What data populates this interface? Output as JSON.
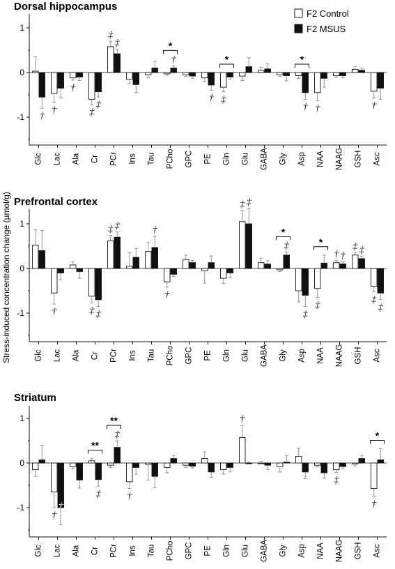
{
  "chart_data": {
    "type": "bar",
    "ylabel": "Stress-induced concentration change (µmol/g)",
    "categories": [
      "Glc",
      "Lac",
      "Ala",
      "Cr",
      "PCr",
      "Ins",
      "Tau",
      "PCho",
      "GPC",
      "PE",
      "Gln",
      "Glu",
      "GABA",
      "Gly",
      "Asp",
      "NAA",
      "NAAG",
      "GSH",
      "Asc"
    ],
    "legend": {
      "placement": "top-right",
      "entries": [
        "F2 Control",
        "F2 MSUS"
      ],
      "colors": [
        "#ffffff",
        "#111111"
      ]
    },
    "yticks": [
      1,
      0,
      -1
    ],
    "ylim": [
      -1.5,
      1.5
    ],
    "panels": [
      {
        "title": "Dorsal hippocampus",
        "series": [
          {
            "name": "F2 Control",
            "values": [
              0.03,
              -0.47,
              -0.12,
              -0.6,
              0.58,
              -0.15,
              -0.05,
              -0.03,
              -0.05,
              -0.12,
              -0.33,
              -0.08,
              0.05,
              -0.05,
              -0.07,
              -0.45,
              -0.07,
              0.07,
              -0.42
            ],
            "errors": [
              0.32,
              0.2,
              0.05,
              0.12,
              0.12,
              0.1,
              0.07,
              0.03,
              0.04,
              0.08,
              0.1,
              0.1,
              0.07,
              0.04,
              0.06,
              0.18,
              0.04,
              0.07,
              0.15
            ]
          },
          {
            "name": "F2 MSUS",
            "values": [
              -0.55,
              -0.35,
              -0.1,
              -0.43,
              0.42,
              -0.27,
              0.1,
              0.1,
              -0.08,
              -0.28,
              -0.1,
              0.13,
              0.08,
              -0.07,
              -0.45,
              -0.13,
              -0.07,
              0.05,
              -0.35
            ],
            "errors": [
              0.25,
              0.22,
              0.08,
              0.12,
              0.1,
              0.18,
              0.15,
              0.05,
              0.05,
              0.12,
              0.05,
              0.2,
              0.12,
              0.12,
              0.15,
              0.2,
              0.05,
              0.05,
              0.25
            ]
          }
        ],
        "annotations": [
          {
            "category": "Glc",
            "series": "F2 MSUS",
            "symbol": "†",
            "pos": "below"
          },
          {
            "category": "Lac",
            "series": "F2 Control",
            "symbol": "†",
            "pos": "below"
          },
          {
            "category": "Ala",
            "series": "F2 Control",
            "symbol": "†",
            "pos": "below"
          },
          {
            "category": "Cr",
            "series": "F2 Control",
            "symbol": "‡",
            "pos": "below"
          },
          {
            "category": "Cr",
            "series": "F2 MSUS",
            "symbol": "‡",
            "pos": "below"
          },
          {
            "category": "PCr",
            "series": "F2 Control",
            "symbol": "‡",
            "pos": "above"
          },
          {
            "category": "PCr",
            "series": "F2 MSUS",
            "symbol": "‡",
            "pos": "above"
          },
          {
            "category": "PCho",
            "series": "F2 MSUS",
            "symbol": "†",
            "pos": "above"
          },
          {
            "category": "PE",
            "series": "F2 MSUS",
            "symbol": "†",
            "pos": "below"
          },
          {
            "category": "Gln",
            "series": "F2 Control",
            "symbol": "‡",
            "pos": "below"
          },
          {
            "category": "Asp",
            "series": "F2 MSUS",
            "symbol": "†",
            "pos": "below"
          },
          {
            "category": "NAA",
            "series": "F2 Control",
            "symbol": "†",
            "pos": "below"
          },
          {
            "category": "Asc",
            "series": "F2 Control",
            "symbol": "†",
            "pos": "below"
          }
        ],
        "significance": [
          {
            "category": "PCho",
            "label": "*"
          },
          {
            "category": "Gln",
            "label": "*"
          },
          {
            "category": "Asp",
            "label": "*"
          }
        ]
      },
      {
        "title": "Prefrontal cortex",
        "series": [
          {
            "name": "F2 Control",
            "values": [
              0.52,
              -0.55,
              0.08,
              -0.62,
              0.62,
              0.05,
              0.38,
              -0.3,
              0.2,
              -0.05,
              -0.22,
              1.05,
              0.13,
              -0.03,
              -0.5,
              -0.45,
              0.13,
              0.3,
              -0.4
            ],
            "errors": [
              0.35,
              0.25,
              0.07,
              0.15,
              0.12,
              0.3,
              0.2,
              0.12,
              0.1,
              0.28,
              0.12,
              0.25,
              0.1,
              0.04,
              0.25,
              0.2,
              0.05,
              0.05,
              0.12
            ]
          },
          {
            "name": "F2 MSUS",
            "values": [
              0.4,
              -0.1,
              -0.07,
              -0.7,
              0.7,
              0.25,
              0.47,
              -0.13,
              0.13,
              0.13,
              -0.1,
              1.0,
              0.1,
              0.3,
              -0.6,
              0.12,
              0.1,
              0.22,
              -0.55
            ],
            "errors": [
              0.45,
              0.15,
              0.15,
              0.15,
              0.12,
              0.2,
              0.25,
              0.05,
              0.05,
              0.15,
              0.1,
              0.35,
              0.07,
              0.07,
              0.25,
              0.18,
              0.05,
              0.05,
              0.15
            ]
          }
        ],
        "annotations": [
          {
            "category": "Lac",
            "series": "F2 Control",
            "symbol": "†",
            "pos": "below"
          },
          {
            "category": "Cr",
            "series": "F2 Control",
            "symbol": "‡",
            "pos": "below"
          },
          {
            "category": "Cr",
            "series": "F2 MSUS",
            "symbol": "‡",
            "pos": "below"
          },
          {
            "category": "PCr",
            "series": "F2 Control",
            "symbol": "‡",
            "pos": "above"
          },
          {
            "category": "PCr",
            "series": "F2 MSUS",
            "symbol": "‡",
            "pos": "above"
          },
          {
            "category": "Tau",
            "series": "F2 MSUS",
            "symbol": "†",
            "pos": "above"
          },
          {
            "category": "PCho",
            "series": "F2 Control",
            "symbol": "†",
            "pos": "below"
          },
          {
            "category": "Glu",
            "series": "F2 Control",
            "symbol": "‡",
            "pos": "above"
          },
          {
            "category": "Glu",
            "series": "F2 MSUS",
            "symbol": "‡",
            "pos": "above"
          },
          {
            "category": "Gly",
            "series": "F2 MSUS",
            "symbol": "‡",
            "pos": "above"
          },
          {
            "category": "Asp",
            "series": "F2 MSUS",
            "symbol": "‡",
            "pos": "below"
          },
          {
            "category": "NAA",
            "series": "F2 Control",
            "symbol": "‡",
            "pos": "below"
          },
          {
            "category": "NAAG",
            "series": "F2 Control",
            "symbol": "†",
            "pos": "above"
          },
          {
            "category": "NAAG",
            "series": "F2 MSUS",
            "symbol": "†",
            "pos": "above"
          },
          {
            "category": "GSH",
            "series": "F2 Control",
            "symbol": "‡",
            "pos": "above"
          },
          {
            "category": "GSH",
            "series": "F2 MSUS",
            "symbol": "‡",
            "pos": "above"
          },
          {
            "category": "Asc",
            "series": "F2 Control",
            "symbol": "‡",
            "pos": "below"
          },
          {
            "category": "Asc",
            "series": "F2 MSUS",
            "symbol": "‡",
            "pos": "below"
          }
        ],
        "significance": [
          {
            "category": "Gly",
            "label": "*"
          },
          {
            "category": "NAA",
            "label": "*"
          }
        ]
      },
      {
        "title": "Striatum",
        "series": [
          {
            "name": "F2 Control",
            "values": [
              -0.15,
              -0.65,
              -0.08,
              0.05,
              -0.05,
              -0.42,
              -0.03,
              -0.1,
              -0.05,
              0.1,
              -0.15,
              0.57,
              0.0,
              -0.08,
              0.15,
              -0.05,
              -0.15,
              -0.02,
              -0.57
            ],
            "errors": [
              0.15,
              0.35,
              0.05,
              0.05,
              0.05,
              0.15,
              0.35,
              0.12,
              0.05,
              0.15,
              0.1,
              0.27,
              0.04,
              0.12,
              0.18,
              0.04,
              0.06,
              0.04,
              0.18
            ]
          },
          {
            "name": "F2 MSUS",
            "values": [
              0.07,
              -1.0,
              -0.38,
              -0.37,
              0.35,
              -0.1,
              -0.3,
              0.1,
              -0.07,
              -0.2,
              -0.1,
              0.0,
              -0.05,
              0.02,
              -0.2,
              -0.22,
              -0.08,
              0.1,
              0.07
            ],
            "errors": [
              0.33,
              0.38,
              0.18,
              0.15,
              0.15,
              0.15,
              0.25,
              0.07,
              0.04,
              0.12,
              0.1,
              0.02,
              0.1,
              0.15,
              0.15,
              0.12,
              0.05,
              0.07,
              0.25
            ]
          }
        ],
        "annotations": [
          {
            "category": "Lac",
            "series": "F2 Control",
            "symbol": "†",
            "pos": "below"
          },
          {
            "category": "Lac",
            "series": "F2 MSUS",
            "symbol": "†",
            "pos": "inside"
          },
          {
            "category": "Cr",
            "series": "F2 MSUS",
            "symbol": "‡",
            "pos": "below"
          },
          {
            "category": "PCr",
            "series": "F2 MSUS",
            "symbol": "‡",
            "pos": "above"
          },
          {
            "category": "Ins",
            "series": "F2 Control",
            "symbol": "†",
            "pos": "below"
          },
          {
            "category": "Glu",
            "series": "F2 Control",
            "symbol": "†",
            "pos": "above"
          },
          {
            "category": "NAAG",
            "series": "F2 Control",
            "symbol": "‡",
            "pos": "below"
          },
          {
            "category": "Asc",
            "series": "F2 Control",
            "symbol": "†",
            "pos": "below"
          }
        ],
        "significance": [
          {
            "category": "Cr",
            "label": "**"
          },
          {
            "category": "PCr",
            "label": "**"
          },
          {
            "category": "Asc",
            "label": "*"
          }
        ]
      }
    ]
  }
}
